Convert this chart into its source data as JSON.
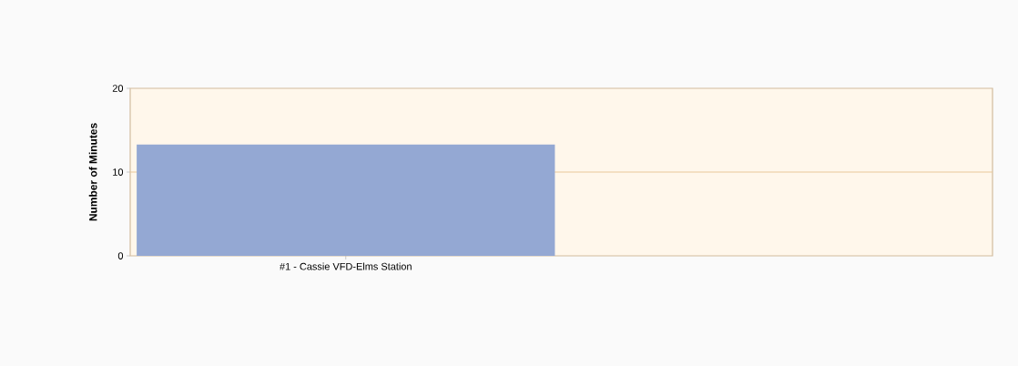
{
  "chart_data": {
    "type": "bar",
    "ylabel": "Number of Minutes",
    "categories": [
      "#1 - Cassie VFD-Elms Station"
    ],
    "values": [
      13.3
    ],
    "color": "#94a8d3",
    "ylim": [
      0,
      20
    ],
    "yticks": [
      0,
      10,
      20
    ],
    "ref_lines": [
      {
        "axis": "y",
        "value": 10,
        "color": "#e8c89a"
      }
    ]
  }
}
